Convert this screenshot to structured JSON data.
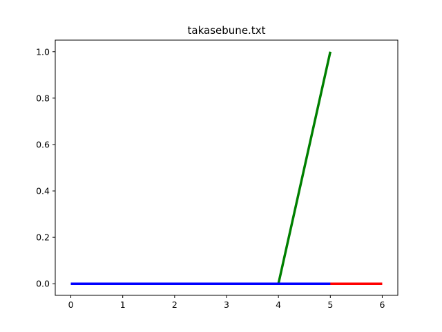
{
  "chart_data": {
    "type": "line",
    "title": "takasebune.txt",
    "xlabel": "",
    "ylabel": "",
    "xlim": [
      -0.3,
      6.3
    ],
    "ylim": [
      -0.05,
      1.05
    ],
    "xticks": [
      0,
      1,
      2,
      3,
      4,
      5,
      6
    ],
    "yticks": [
      0.0,
      0.2,
      0.4,
      0.6,
      0.8,
      1.0
    ],
    "ytick_labels": [
      "0.0",
      "0.2",
      "0.4",
      "0.6",
      "0.8",
      "1.0"
    ],
    "grid": false,
    "legend": "none",
    "series": [
      {
        "color": "#ff0000",
        "x": [
          0,
          1,
          2,
          3,
          4,
          5,
          6
        ],
        "y": [
          0,
          0,
          0,
          0,
          0,
          0,
          0
        ]
      },
      {
        "color": "#008000",
        "x": [
          0,
          1,
          2,
          3,
          4,
          5
        ],
        "y": [
          0,
          0,
          0,
          0,
          0,
          1
        ]
      },
      {
        "color": "#0000ff",
        "x": [
          0,
          1,
          2,
          3,
          4,
          5
        ],
        "y": [
          0,
          0,
          0,
          0,
          0,
          0
        ]
      }
    ]
  }
}
